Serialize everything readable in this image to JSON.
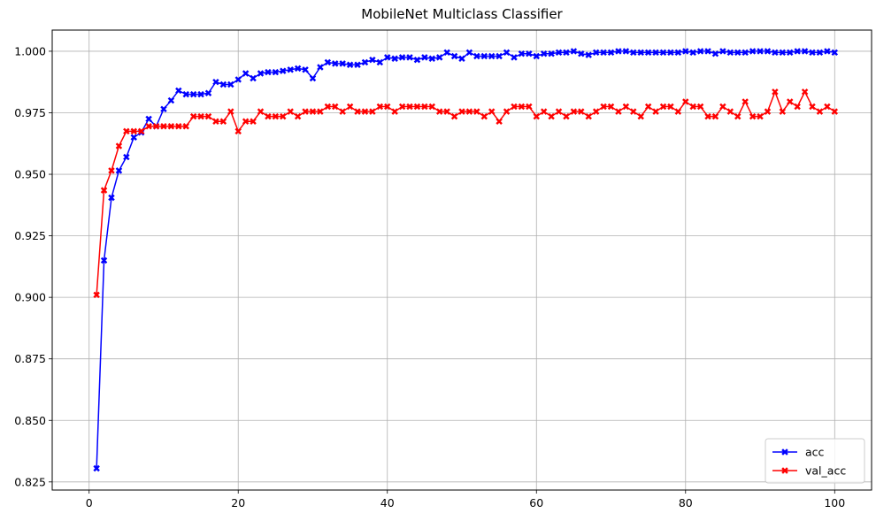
{
  "chart_data": {
    "type": "line",
    "title": "MobileNet Multiclass Classifier",
    "xlabel": "",
    "ylabel": "",
    "xlim": [
      -4.95,
      104.95
    ],
    "ylim": [
      0.8217,
      1.0086
    ],
    "xticks": [
      0,
      20,
      40,
      60,
      80,
      100
    ],
    "xtick_labels": [
      "0",
      "20",
      "40",
      "60",
      "80",
      "100"
    ],
    "yticks": [
      0.825,
      0.85,
      0.875,
      0.9,
      0.925,
      0.95,
      0.975,
      1.0
    ],
    "ytick_labels": [
      "0.825",
      "0.850",
      "0.875",
      "0.900",
      "0.925",
      "0.950",
      "0.975",
      "1.000"
    ],
    "grid": true,
    "legend_position": "bottom-right",
    "marker": "X",
    "x": [
      1,
      2,
      3,
      4,
      5,
      6,
      7,
      8,
      9,
      10,
      11,
      12,
      13,
      14,
      15,
      16,
      17,
      18,
      19,
      20,
      21,
      22,
      23,
      24,
      25,
      26,
      27,
      28,
      29,
      30,
      31,
      32,
      33,
      34,
      35,
      36,
      37,
      38,
      39,
      40,
      41,
      42,
      43,
      44,
      45,
      46,
      47,
      48,
      49,
      50,
      51,
      52,
      53,
      54,
      55,
      56,
      57,
      58,
      59,
      60,
      61,
      62,
      63,
      64,
      65,
      66,
      67,
      68,
      69,
      70,
      71,
      72,
      73,
      74,
      75,
      76,
      77,
      78,
      79,
      80,
      81,
      82,
      83,
      84,
      85,
      86,
      87,
      88,
      89,
      90,
      91,
      92,
      93,
      94,
      95,
      96,
      97,
      98,
      99,
      100
    ],
    "series": [
      {
        "name": "acc",
        "color": "#0000ff",
        "values": [
          0.8305,
          0.915,
          0.9405,
          0.9515,
          0.957,
          0.965,
          0.967,
          0.9725,
          0.9695,
          0.9765,
          0.98,
          0.984,
          0.9825,
          0.9825,
          0.9825,
          0.983,
          0.9875,
          0.9865,
          0.9865,
          0.9885,
          0.991,
          0.989,
          0.991,
          0.9915,
          0.9915,
          0.992,
          0.9925,
          0.993,
          0.9925,
          0.989,
          0.9935,
          0.9955,
          0.995,
          0.995,
          0.9945,
          0.9945,
          0.9955,
          0.9965,
          0.9955,
          0.9975,
          0.997,
          0.9975,
          0.9975,
          0.9965,
          0.9975,
          0.997,
          0.9975,
          0.9995,
          0.998,
          0.997,
          0.9995,
          0.998,
          0.998,
          0.998,
          0.998,
          0.9995,
          0.9975,
          0.999,
          0.999,
          0.998,
          0.999,
          0.999,
          0.9995,
          0.9995,
          1.0,
          0.999,
          0.9985,
          0.9995,
          0.9995,
          0.9995,
          1.0,
          1.0,
          0.9995,
          0.9995,
          0.9995,
          0.9995,
          0.9995,
          0.9995,
          0.9995,
          1.0,
          0.9995,
          1.0,
          1.0,
          0.999,
          1.0,
          0.9995,
          0.9995,
          0.9995,
          1.0,
          1.0,
          1.0,
          0.9995,
          0.9995,
          0.9995,
          1.0,
          1.0,
          0.9995,
          0.9995,
          1.0,
          0.9995
        ]
      },
      {
        "name": "val_acc",
        "color": "#ff0000",
        "values": [
          0.901,
          0.9435,
          0.9515,
          0.9615,
          0.9675,
          0.9675,
          0.9675,
          0.9695,
          0.9695,
          0.9695,
          0.9695,
          0.9695,
          0.9695,
          0.9735,
          0.9735,
          0.9735,
          0.9715,
          0.9715,
          0.9755,
          0.9675,
          0.9715,
          0.9715,
          0.9755,
          0.9735,
          0.9735,
          0.9735,
          0.9755,
          0.9735,
          0.9755,
          0.9755,
          0.9755,
          0.9775,
          0.9775,
          0.9755,
          0.9775,
          0.9755,
          0.9755,
          0.9755,
          0.9775,
          0.9775,
          0.9755,
          0.9775,
          0.9775,
          0.9775,
          0.9775,
          0.9775,
          0.9755,
          0.9755,
          0.9735,
          0.9755,
          0.9755,
          0.9755,
          0.9735,
          0.9755,
          0.9715,
          0.9755,
          0.9775,
          0.9775,
          0.9775,
          0.9735,
          0.9755,
          0.9735,
          0.9755,
          0.9735,
          0.9755,
          0.9755,
          0.9735,
          0.9755,
          0.9775,
          0.9775,
          0.9755,
          0.9775,
          0.9755,
          0.9735,
          0.9775,
          0.9755,
          0.9775,
          0.9775,
          0.9755,
          0.9795,
          0.9775,
          0.9775,
          0.9735,
          0.9735,
          0.9775,
          0.9755,
          0.9735,
          0.9795,
          0.9735,
          0.9735,
          0.9755,
          0.9835,
          0.9755,
          0.9795,
          0.9775,
          0.9835,
          0.9775,
          0.9755,
          0.9775,
          0.9755
        ]
      }
    ]
  }
}
